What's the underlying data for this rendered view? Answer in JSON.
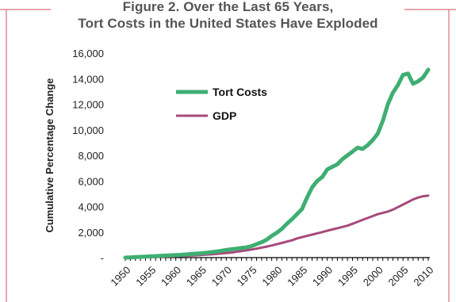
{
  "chart_data": {
    "type": "line",
    "title_line1": "Figure 2. Over the Last 65 Years,",
    "title_line2": "Tort Costs in the United States Have Exploded",
    "xlabel": "",
    "ylabel": "Cumulative Percentage Change",
    "ylim": [
      0,
      16000
    ],
    "y_ticks": [
      0,
      2000,
      4000,
      6000,
      8000,
      10000,
      12000,
      14000,
      16000
    ],
    "y_tick_labels": [
      "-",
      "2,000",
      "4,000",
      "6,000",
      "8,000",
      "10,000",
      "12,000",
      "14,000",
      "16,000"
    ],
    "xlim": [
      1950,
      2010
    ],
    "x_tick_labels": [
      "1950",
      "1955",
      "1960",
      "1965",
      "1970",
      "1975",
      "1980",
      "1985",
      "1990",
      "1995",
      "2000",
      "2005",
      "2010"
    ],
    "legend_position": "upper-left",
    "grid": false,
    "colors": {
      "tort": "#3fae72",
      "gdp": "#a64a7b",
      "frame": "#d9707d",
      "axis": "#000000"
    },
    "x": [
      1950,
      1951,
      1952,
      1953,
      1954,
      1955,
      1956,
      1957,
      1958,
      1959,
      1960,
      1961,
      1962,
      1963,
      1964,
      1965,
      1966,
      1967,
      1968,
      1969,
      1970,
      1971,
      1972,
      1973,
      1974,
      1975,
      1976,
      1977,
      1978,
      1979,
      1980,
      1981,
      1982,
      1983,
      1984,
      1985,
      1986,
      1987,
      1988,
      1989,
      1990,
      1991,
      1992,
      1993,
      1994,
      1995,
      1996,
      1997,
      1998,
      1999,
      2000,
      2001,
      2002,
      2003,
      2004,
      2005,
      2006,
      2007,
      2008,
      2009,
      2010
    ],
    "series": [
      {
        "name": "Tort Costs",
        "values": [
          0,
          20,
          40,
          60,
          80,
          100,
          120,
          140,
          160,
          180,
          200,
          220,
          250,
          280,
          310,
          340,
          380,
          420,
          470,
          530,
          600,
          650,
          700,
          750,
          800,
          900,
          1050,
          1200,
          1400,
          1700,
          1950,
          2250,
          2650,
          3000,
          3400,
          3800,
          4700,
          5500,
          6000,
          6300,
          6900,
          7100,
          7300,
          7700,
          8000,
          8300,
          8600,
          8500,
          8800,
          9200,
          9700,
          10700,
          12000,
          12900,
          13500,
          14300,
          14400,
          13600,
          13800,
          14100,
          14700
        ]
      },
      {
        "name": "GDP",
        "values": [
          0,
          10,
          20,
          30,
          40,
          50,
          60,
          70,
          80,
          95,
          110,
          125,
          140,
          160,
          180,
          205,
          230,
          255,
          285,
          320,
          360,
          400,
          450,
          510,
          570,
          630,
          700,
          780,
          860,
          950,
          1050,
          1150,
          1250,
          1350,
          1500,
          1600,
          1700,
          1800,
          1900,
          2000,
          2100,
          2200,
          2300,
          2400,
          2500,
          2650,
          2800,
          2950,
          3100,
          3250,
          3400,
          3500,
          3600,
          3750,
          3950,
          4150,
          4350,
          4550,
          4700,
          4800,
          4850
        ]
      }
    ]
  }
}
